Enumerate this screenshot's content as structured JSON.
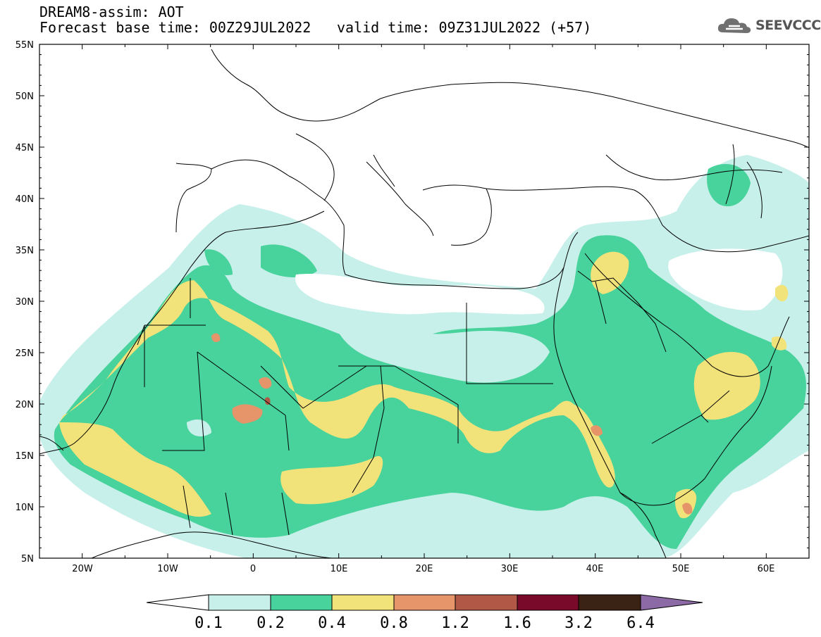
{
  "header": {
    "title": "DREAM8-assim: AOT",
    "base_time": "Forecast base time: 00Z29JUL2022",
    "valid_time": "valid time: 09Z31JUL2022 (+57)"
  },
  "logo": {
    "text": "SEEVCCC",
    "icon": "cloud-icon"
  },
  "map": {
    "lon_range": [
      -25,
      65
    ],
    "lat_range": [
      5,
      55
    ],
    "lat_ticks": [
      "55N",
      "50N",
      "45N",
      "40N",
      "35N",
      "30N",
      "25N",
      "20N",
      "15N",
      "10N",
      "5N"
    ],
    "lon_ticks": [
      "20W",
      "10W",
      "0",
      "10E",
      "20E",
      "30E",
      "40E",
      "50E",
      "60E"
    ]
  },
  "colorbar": {
    "labels": [
      "0.1",
      "0.2",
      "0.4",
      "0.8",
      "1.2",
      "1.6",
      "3.2",
      "6.4"
    ],
    "colors": [
      "#c8f0ea",
      "#48d29c",
      "#f2e27a",
      "#e6946a",
      "#b15846",
      "#7a0a2a",
      "#3a2314",
      "#8c6aa6"
    ]
  }
}
